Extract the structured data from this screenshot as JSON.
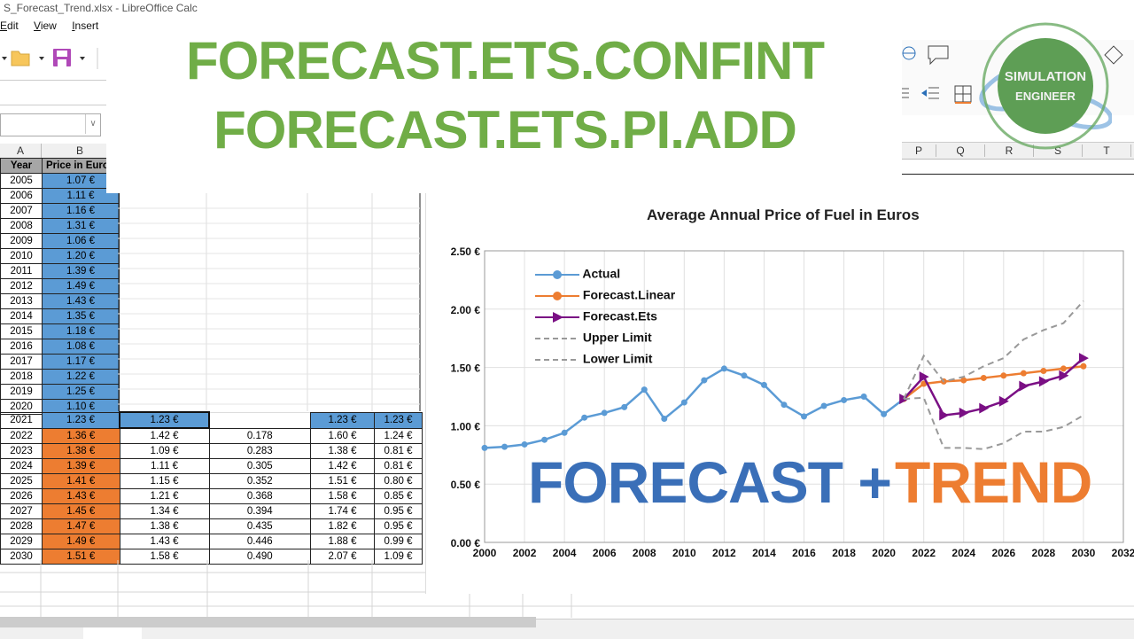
{
  "window": {
    "title": "S_Forecast_Trend.xlsx - LibreOffice Calc"
  },
  "menu": {
    "items": [
      "Edit",
      "View",
      "Insert"
    ]
  },
  "overlay": {
    "title_line1": "FORECAST.ETS.CONFINT",
    "title_line2": "FORECAST.ETS.PI.ADD",
    "watermark_left": "FORECAST +",
    "watermark_right": "TREND",
    "logo_line1": "SIMULATION",
    "logo_line2": "ENGINEER"
  },
  "colors": {
    "green": "#70ad47",
    "blue": "#5b9bd5",
    "orange": "#ed7d31",
    "purple": "#7a0f84",
    "gray": "#999999",
    "watermark_blue": "#3a6fb8"
  },
  "sheet": {
    "column_headers_left": [
      "A",
      "B"
    ],
    "column_headers_right": [
      "P",
      "Q",
      "R",
      "S",
      "T"
    ],
    "header_row": {
      "year": "Year",
      "price": "Price in Euro"
    },
    "actual_rows": [
      {
        "year": "2005",
        "price": "1.07 €"
      },
      {
        "year": "2006",
        "price": "1.11 €"
      },
      {
        "year": "2007",
        "price": "1.16 €"
      },
      {
        "year": "2008",
        "price": "1.31 €"
      },
      {
        "year": "2009",
        "price": "1.06 €"
      },
      {
        "year": "2010",
        "price": "1.20 €"
      },
      {
        "year": "2011",
        "price": "1.39 €"
      },
      {
        "year": "2012",
        "price": "1.49 €"
      },
      {
        "year": "2013",
        "price": "1.43 €"
      },
      {
        "year": "2014",
        "price": "1.35 €"
      },
      {
        "year": "2015",
        "price": "1.18 €"
      },
      {
        "year": "2016",
        "price": "1.08 €"
      },
      {
        "year": "2017",
        "price": "1.17 €"
      },
      {
        "year": "2018",
        "price": "1.22 €"
      },
      {
        "year": "2019",
        "price": "1.25 €"
      },
      {
        "year": "2020",
        "price": "1.10 €"
      }
    ],
    "anchor_row": {
      "year": "2021",
      "price": "1.23 €",
      "ets": "1.23 €",
      "confint": "",
      "upper": "1.23 €",
      "lower": "1.23 €"
    },
    "forecast_rows": [
      {
        "year": "2022",
        "linear": "1.36 €",
        "ets": "1.42 €",
        "confint": "0.178",
        "upper": "1.60 €",
        "lower": "1.24 €"
      },
      {
        "year": "2023",
        "linear": "1.38 €",
        "ets": "1.09 €",
        "confint": "0.283",
        "upper": "1.38 €",
        "lower": "0.81 €"
      },
      {
        "year": "2024",
        "linear": "1.39 €",
        "ets": "1.11 €",
        "confint": "0.305",
        "upper": "1.42 €",
        "lower": "0.81 €"
      },
      {
        "year": "2025",
        "linear": "1.41 €",
        "ets": "1.15 €",
        "confint": "0.352",
        "upper": "1.51 €",
        "lower": "0.80 €"
      },
      {
        "year": "2026",
        "linear": "1.43 €",
        "ets": "1.21 €",
        "confint": "0.368",
        "upper": "1.58 €",
        "lower": "0.85 €"
      },
      {
        "year": "2027",
        "linear": "1.45 €",
        "ets": "1.34 €",
        "confint": "0.394",
        "upper": "1.74 €",
        "lower": "0.95 €"
      },
      {
        "year": "2028",
        "linear": "1.47 €",
        "ets": "1.38 €",
        "confint": "0.435",
        "upper": "1.82 €",
        "lower": "0.95 €"
      },
      {
        "year": "2029",
        "linear": "1.49 €",
        "ets": "1.43 €",
        "confint": "0.446",
        "upper": "1.88 €",
        "lower": "0.99 €"
      },
      {
        "year": "2030",
        "linear": "1.51 €",
        "ets": "1.58 €",
        "confint": "0.490",
        "upper": "2.07 €",
        "lower": "1.09 €"
      }
    ]
  },
  "chart_data": {
    "type": "line",
    "title": "Average Annual Price of Fuel in Euros",
    "xlabel": "",
    "ylabel": "",
    "xlim": [
      2000,
      2032
    ],
    "ylim": [
      0,
      2.5
    ],
    "x_ticks": [
      "2000",
      "2002",
      "2004",
      "2006",
      "2008",
      "2010",
      "2012",
      "2014",
      "2016",
      "2018",
      "2020",
      "2022",
      "2024",
      "2026",
      "2028",
      "2030",
      "2032"
    ],
    "y_ticks": [
      "0.00 €",
      "0.50 €",
      "1.00 €",
      "1.50 €",
      "2.00 €",
      "2.50 €"
    ],
    "grid": true,
    "legend_position": "upper-left-inside",
    "series": [
      {
        "name": "Actual",
        "color": "#5b9bd5",
        "marker": "circle",
        "x": [
          2000,
          2001,
          2002,
          2003,
          2004,
          2005,
          2006,
          2007,
          2008,
          2009,
          2010,
          2011,
          2012,
          2013,
          2014,
          2015,
          2016,
          2017,
          2018,
          2019,
          2020,
          2021
        ],
        "values": [
          0.81,
          0.82,
          0.84,
          0.88,
          0.94,
          1.07,
          1.11,
          1.16,
          1.31,
          1.06,
          1.2,
          1.39,
          1.49,
          1.43,
          1.35,
          1.18,
          1.08,
          1.17,
          1.22,
          1.25,
          1.1,
          1.23
        ]
      },
      {
        "name": "Forecast.Linear",
        "color": "#ed7d31",
        "marker": "circle",
        "x": [
          2021,
          2022,
          2023,
          2024,
          2025,
          2026,
          2027,
          2028,
          2029,
          2030
        ],
        "values": [
          1.23,
          1.36,
          1.38,
          1.39,
          1.41,
          1.43,
          1.45,
          1.47,
          1.49,
          1.51
        ]
      },
      {
        "name": "Forecast.Ets",
        "color": "#7a0f84",
        "marker": "triangle-right",
        "x": [
          2021,
          2022,
          2023,
          2024,
          2025,
          2026,
          2027,
          2028,
          2029,
          2030
        ],
        "values": [
          1.23,
          1.42,
          1.09,
          1.11,
          1.15,
          1.21,
          1.34,
          1.38,
          1.43,
          1.58
        ]
      },
      {
        "name": "Upper Limit",
        "color": "#999999",
        "dash": true,
        "x": [
          2021,
          2022,
          2023,
          2024,
          2025,
          2026,
          2027,
          2028,
          2029,
          2030
        ],
        "values": [
          1.23,
          1.6,
          1.38,
          1.42,
          1.51,
          1.58,
          1.74,
          1.82,
          1.88,
          2.07
        ]
      },
      {
        "name": "Lower Limit",
        "color": "#999999",
        "dash": true,
        "x": [
          2021,
          2022,
          2023,
          2024,
          2025,
          2026,
          2027,
          2028,
          2029,
          2030
        ],
        "values": [
          1.23,
          1.24,
          0.81,
          0.81,
          0.8,
          0.85,
          0.95,
          0.95,
          0.99,
          1.09
        ]
      }
    ]
  }
}
